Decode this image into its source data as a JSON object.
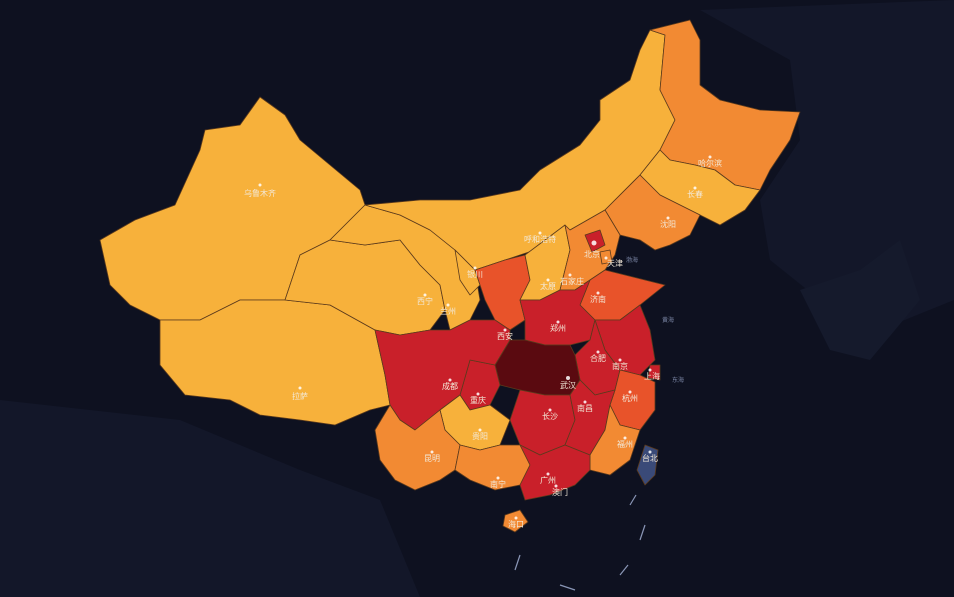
{
  "colors": {
    "background": "#0e1120",
    "land_other": "#151a2b",
    "level_1": "#f7b13b",
    "level_2": "#f28a33",
    "level_3": "#e8532a",
    "level_4": "#c9202a",
    "level_5": "#5a0a10",
    "taiwan": "#3a4a78",
    "border": "#6b4a2a"
  },
  "cities": {
    "urumqi": "乌鲁木齐",
    "lhasa": "拉萨",
    "xining": "西宁",
    "lanzhou": "兰州",
    "yinchuan": "银川",
    "hohhot": "呼和浩特",
    "taiyuan": "太原",
    "shijiazhuang": "石家庄",
    "beijing": "北京",
    "tianjin": "天津",
    "jinan": "济南",
    "zhengzhou": "郑州",
    "xian": "西安",
    "hefei": "合肥",
    "nanjing": "南京",
    "shanghai": "上海",
    "wuhan": "武汉",
    "chengdu": "成都",
    "chongqing": "重庆",
    "changsha": "长沙",
    "nanchang": "南昌",
    "hangzhou": "杭州",
    "fuzhou": "福州",
    "guiyang": "贵阳",
    "kunming": "昆明",
    "nanning": "南宁",
    "guangzhou": "广州",
    "macau": "澳门",
    "haikou": "海口",
    "taipei": "台北",
    "harbin": "哈尔滨",
    "changchun": "长春",
    "shenyang": "沈阳"
  },
  "seas": {
    "bohai": "渤海",
    "yellow_sea": "黄海",
    "east_sea": "东海"
  }
}
